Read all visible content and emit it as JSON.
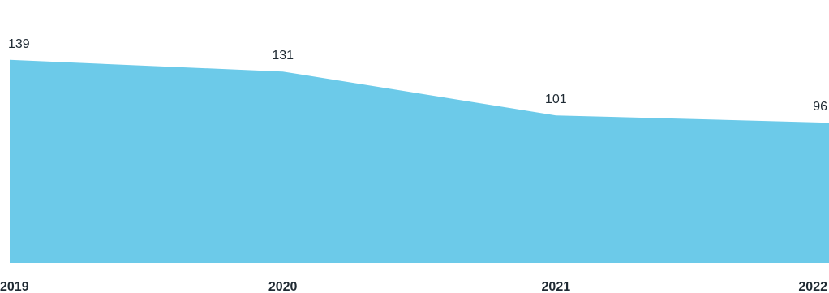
{
  "chart_data": {
    "type": "area",
    "categories": [
      "2019",
      "2020",
      "2021",
      "2022"
    ],
    "values": [
      139,
      131,
      101,
      96
    ],
    "data_labels": [
      "139",
      "131",
      "101",
      "96"
    ],
    "ylim": [
      0,
      180
    ],
    "grid": false,
    "legend": "none",
    "fill_color": "#6ccae9",
    "text_color": "#1f2a33"
  }
}
